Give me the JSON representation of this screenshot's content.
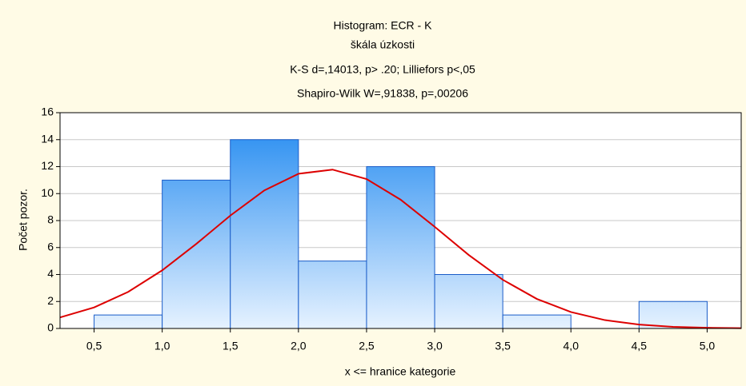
{
  "chart_data": {
    "type": "histogram",
    "title": "Histogram: ECR - K",
    "subtitle": "škála úzkosti",
    "annotations": [
      "K-S d=,14013, p> .20; Lilliefors p<,05",
      "Shapiro-Wilk W=,91838, p=,00206"
    ],
    "xlabel": "x <= hranice kategorie",
    "ylabel": "Počet pozor.",
    "bins": [
      0.5,
      1.0,
      1.5,
      2.0,
      2.5,
      3.0,
      3.5,
      4.0,
      4.5,
      5.0
    ],
    "values": [
      1,
      11,
      14,
      5,
      12,
      4,
      1,
      0,
      2
    ],
    "color": "#1e88f0",
    "curve": {
      "color": "#dd0000",
      "x": [
        0.25,
        0.5,
        0.75,
        1.0,
        1.25,
        1.5,
        1.75,
        2.0,
        2.25,
        2.5,
        2.75,
        3.0,
        3.25,
        3.5,
        3.75,
        4.0,
        4.25,
        4.5,
        4.75,
        5.0,
        5.25
      ],
      "values": [
        0.82,
        1.56,
        2.71,
        4.31,
        6.27,
        8.37,
        10.24,
        11.47,
        11.78,
        11.08,
        9.55,
        7.54,
        5.45,
        3.61,
        2.19,
        1.22,
        0.62,
        0.29,
        0.12,
        0.05,
        0.02
      ]
    },
    "xlim": [
      0.25,
      5.25
    ],
    "xticks": [
      {
        "value": 0.5,
        "label": "0,5"
      },
      {
        "value": 1.0,
        "label": "1,0"
      },
      {
        "value": 1.5,
        "label": "1,5"
      },
      {
        "value": 2.0,
        "label": "2,0"
      },
      {
        "value": 2.5,
        "label": "2,5"
      },
      {
        "value": 3.0,
        "label": "3,0"
      },
      {
        "value": 3.5,
        "label": "3,5"
      },
      {
        "value": 4.0,
        "label": "4,0"
      },
      {
        "value": 4.5,
        "label": "4,5"
      },
      {
        "value": 5.0,
        "label": "5,0"
      }
    ],
    "ylim": [
      0,
      16
    ],
    "yticks": [
      0,
      2,
      4,
      6,
      8,
      10,
      12,
      14,
      16
    ],
    "grid": true
  }
}
